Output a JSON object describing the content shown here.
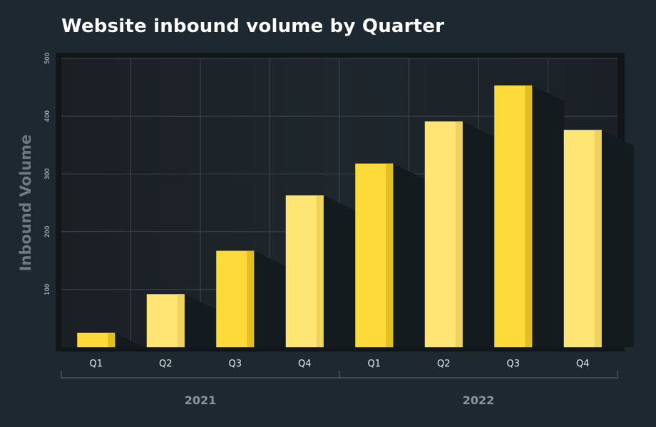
{
  "chart_data": {
    "type": "bar",
    "title": "Website inbound volume by Quarter",
    "ylabel": "Inbound Volume",
    "xlabel": "",
    "ylim": [
      0,
      500
    ],
    "yticks": [
      100,
      200,
      300,
      400,
      500
    ],
    "grid": true,
    "categories": [
      "Q1",
      "Q2",
      "Q3",
      "Q4",
      "Q1",
      "Q2",
      "Q3",
      "Q4"
    ],
    "groups": [
      {
        "label": "2021",
        "count": 4
      },
      {
        "label": "2022",
        "count": 4
      }
    ],
    "values": [
      25,
      92,
      167,
      263,
      318,
      391,
      453,
      376
    ]
  },
  "colors": {
    "bar_dark": "#fedb3a",
    "bar_light": "#fee574",
    "bar_edge_dark": "#e3bf23",
    "bar_edge_light": "#f0d25e",
    "shadow": "#141b1e",
    "plot_bg": "#1c2329",
    "frame": "#111618",
    "grid": "#3d474d",
    "tick_text": "#cfd6da",
    "axis_label": "#6c7a82",
    "group_text": "#8c979d",
    "bracket": "#5a666c"
  }
}
